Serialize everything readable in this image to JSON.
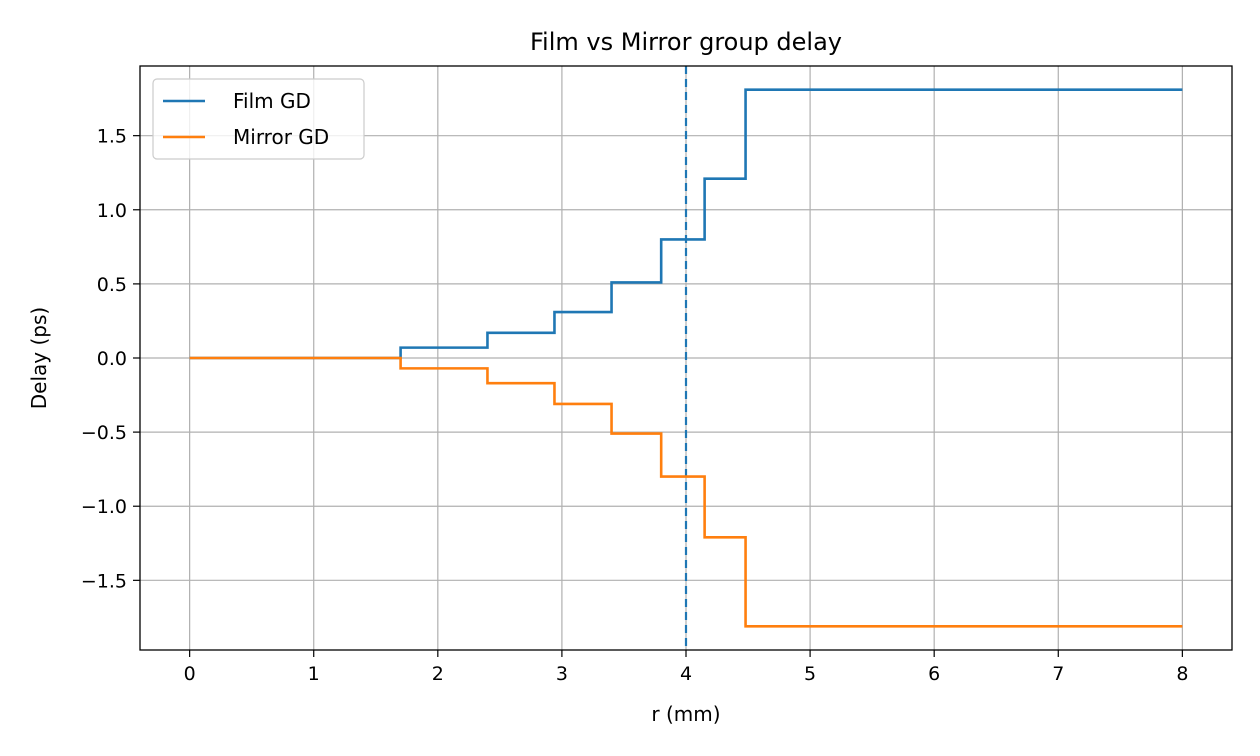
{
  "chart_data": {
    "type": "line",
    "title": "Film vs Mirror group delay",
    "xlabel": "r (mm)",
    "ylabel": "Delay (ps)",
    "xlim": [
      -0.4,
      8.4
    ],
    "ylim": [
      -1.97,
      1.97
    ],
    "x_ticks": [
      0,
      1,
      2,
      3,
      4,
      5,
      6,
      7,
      8
    ],
    "x_tick_labels": [
      "0",
      "1",
      "2",
      "3",
      "4",
      "5",
      "6",
      "7",
      "8"
    ],
    "y_ticks": [
      -1.5,
      -1.0,
      -0.5,
      0.0,
      0.5,
      1.0,
      1.5
    ],
    "y_tick_labels": [
      "−1.5",
      "−1.0",
      "−0.5",
      "0.0",
      "0.5",
      "1.0",
      "1.5"
    ],
    "grid": true,
    "legend_position": "upper-left",
    "vertical_line": {
      "x": 4.0,
      "style": "dashed",
      "color": "#1f77b4"
    },
    "series": [
      {
        "name": "Film GD",
        "color": "#1f77b4",
        "step": "post",
        "x": [
          0,
          1.7,
          2.4,
          2.94,
          3.4,
          3.8,
          4.15,
          4.48,
          8.0
        ],
        "values": [
          0.0,
          0.07,
          0.17,
          0.31,
          0.51,
          0.8,
          1.21,
          1.81,
          1.81
        ]
      },
      {
        "name": "Mirror GD",
        "color": "#ff7f0e",
        "step": "post",
        "x": [
          0,
          1.7,
          2.4,
          2.94,
          3.4,
          3.8,
          4.15,
          4.48,
          8.0
        ],
        "values": [
          0.0,
          -0.07,
          -0.17,
          -0.31,
          -0.51,
          -0.8,
          -1.21,
          -1.81,
          -1.81
        ]
      }
    ]
  }
}
